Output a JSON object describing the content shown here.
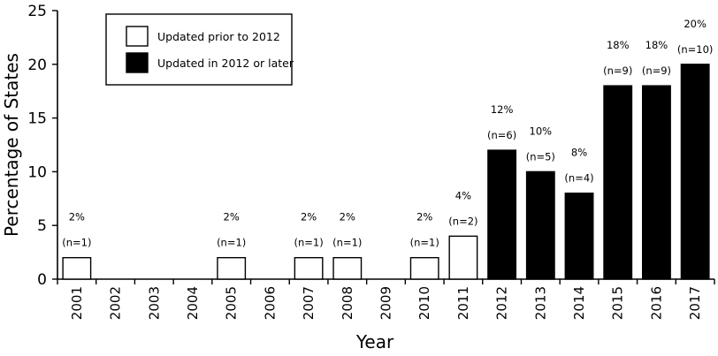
{
  "chart_data": {
    "type": "bar",
    "title": "",
    "xlabel": "Year",
    "ylabel": "Percentage of  States",
    "ylim": [
      0,
      25
    ],
    "yticks": [
      "0",
      "5",
      "10",
      "15",
      "20",
      "25"
    ],
    "grid": false,
    "legend_position": "top-left",
    "categories": [
      "2001",
      "2002",
      "2003",
      "2004",
      "2005",
      "2006",
      "2007",
      "2008",
      "2009",
      "2010",
      "2011",
      "2012",
      "2013",
      "2014",
      "2015",
      "2016",
      "2017"
    ],
    "series": [
      {
        "name": "Updated prior to 2012",
        "color": "#ffffff",
        "values": [
          2,
          0,
          0,
          0,
          2,
          0,
          2,
          2,
          0,
          2,
          4,
          null,
          null,
          null,
          null,
          null,
          null
        ]
      },
      {
        "name": "Updated in 2012 or later",
        "color": "#000000",
        "values": [
          null,
          null,
          null,
          null,
          null,
          null,
          null,
          null,
          null,
          null,
          null,
          12,
          10,
          8,
          18,
          18,
          20
        ]
      }
    ],
    "annotations": [
      {
        "category": "2001",
        "pct": "2%",
        "n": "(n=1)"
      },
      {
        "category": "2005",
        "pct": "2%",
        "n": "(n=1)"
      },
      {
        "category": "2007",
        "pct": "2%",
        "n": "(n=1)"
      },
      {
        "category": "2008",
        "pct": "2%",
        "n": "(n=1)"
      },
      {
        "category": "2010",
        "pct": "2%",
        "n": "(n=1)"
      },
      {
        "category": "2011",
        "pct": "4%",
        "n": "(n=2)"
      },
      {
        "category": "2012",
        "pct": "12%",
        "n": "(n=6)"
      },
      {
        "category": "2013",
        "pct": "10%",
        "n": "(n=5)"
      },
      {
        "category": "2014",
        "pct": "8%",
        "n": "(n=4)"
      },
      {
        "category": "2015",
        "pct": "18%",
        "n": "(n=9)"
      },
      {
        "category": "2016",
        "pct": "18%",
        "n": "(n=9)"
      },
      {
        "category": "2017",
        "pct": "20%",
        "n": "(n=10)"
      }
    ]
  }
}
